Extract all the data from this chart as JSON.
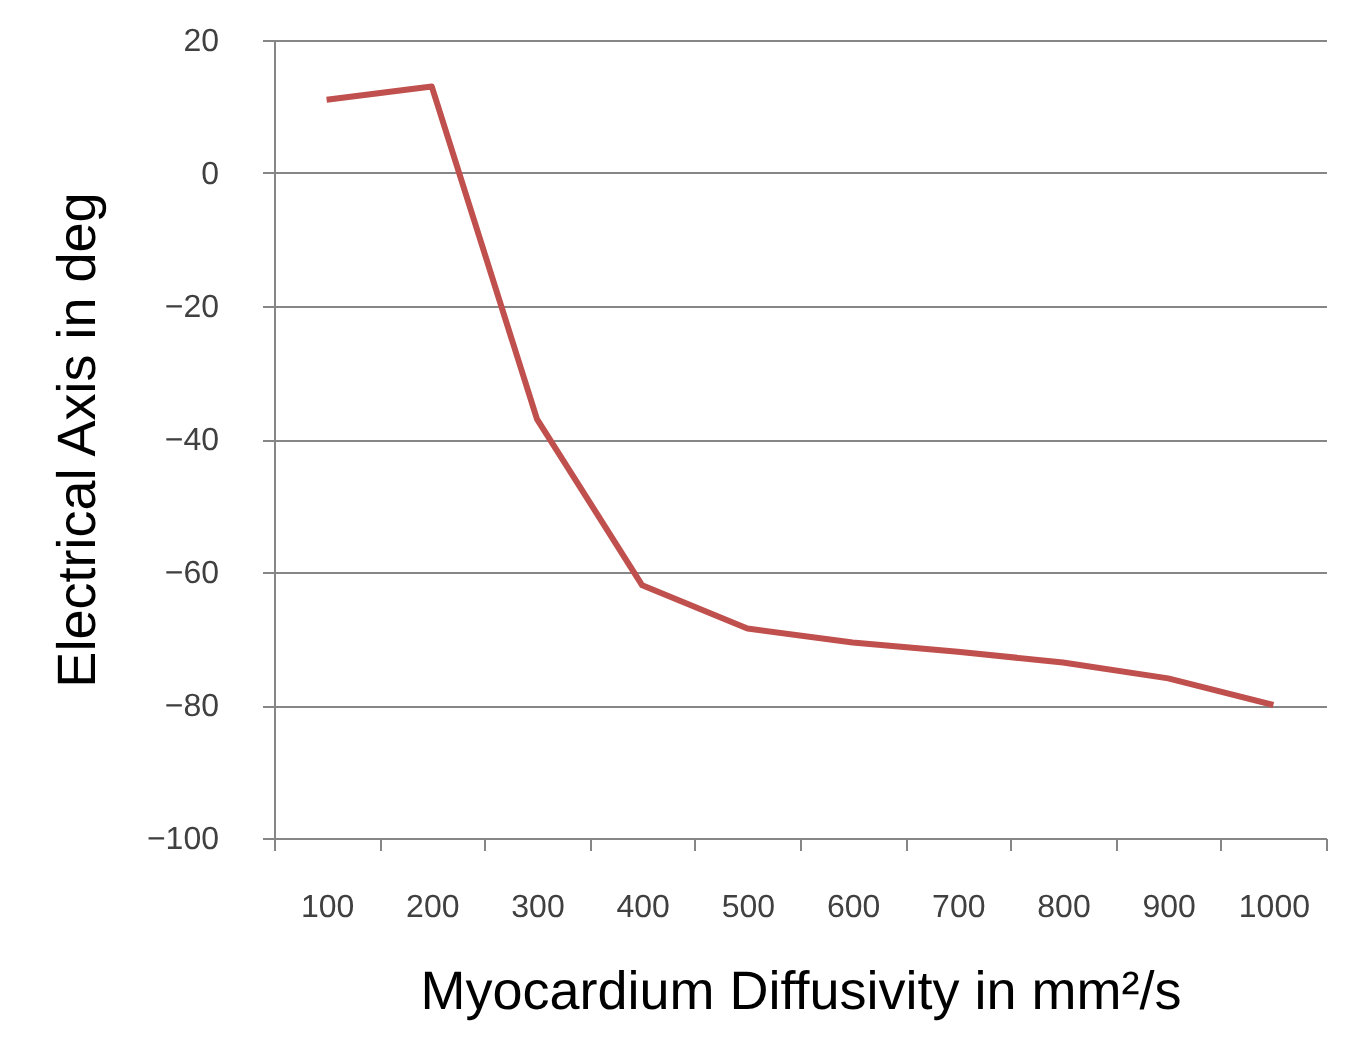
{
  "chart_data": {
    "type": "line",
    "xlabel": "Myocardium Diffusivity in mm²/s",
    "ylabel": "Electrical Axis in deg",
    "categories": [
      "100",
      "200",
      "300",
      "400",
      "500",
      "600",
      "700",
      "800",
      "900",
      "1000"
    ],
    "series": [
      {
        "color": "#c0504d",
        "values": [
          11,
          13,
          -37,
          -62,
          -68.5,
          -70.6,
          -72,
          -73.6,
          -76,
          -80
        ]
      }
    ],
    "ylim": [
      -100,
      20
    ],
    "yticks": [
      -100,
      -80,
      -60,
      -40,
      -20,
      0,
      20
    ],
    "grid": "y",
    "legend": false
  }
}
